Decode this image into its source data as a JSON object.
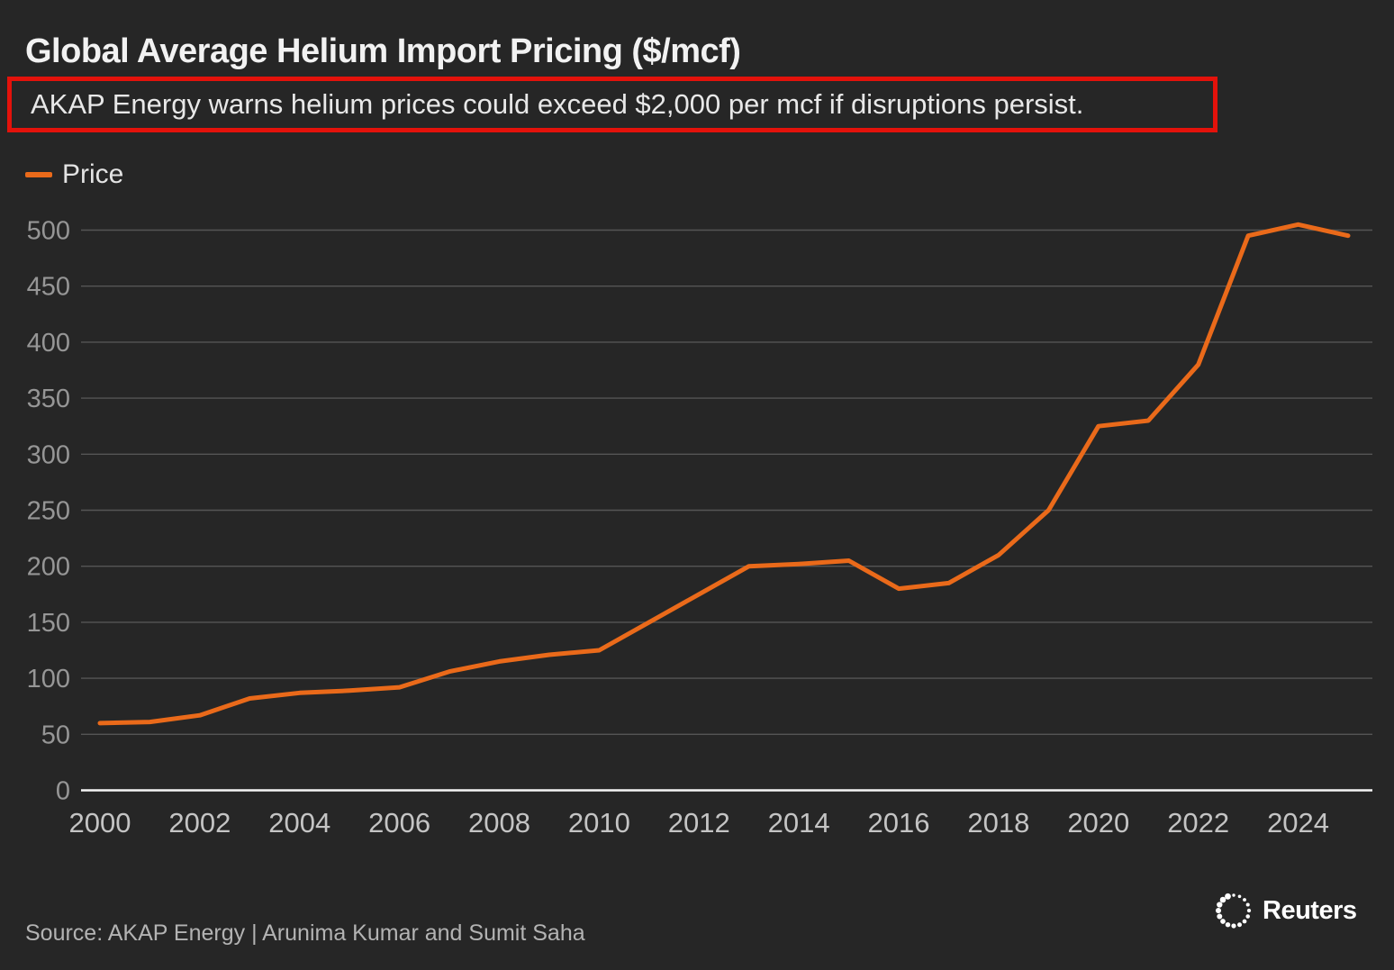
{
  "header": {
    "title": "Global Average Helium Import Pricing ($/mcf)",
    "subtitle": "AKAP Energy warns helium prices could exceed $2,000 per mcf if disruptions persist."
  },
  "legend": {
    "items": [
      {
        "label": "Price",
        "color": "#ea6a1a"
      }
    ]
  },
  "footer": {
    "source": "Source: AKAP Energy | Arunima Kumar and Sumit Saha",
    "logo_wordmark": "Reuters",
    "logo_icon": "reuters-dotted-circle"
  },
  "colors": {
    "background": "#262626",
    "title_text": "#f2f2f2",
    "subtitle_text": "#e8e8e8",
    "highlight_border": "#e3120b",
    "accent_orange": "#ea6a1a",
    "gridline": "#555555",
    "axis_line": "#f5f5f5",
    "y_tick_text": "#969696",
    "x_tick_text": "#c4c4c4",
    "source_text": "#b3b3b3"
  },
  "chart_data": {
    "type": "line",
    "title": "Global Average Helium Import Pricing ($/mcf)",
    "subtitle_annotation": "AKAP Energy warns helium prices could exceed $2,000 per mcf if disruptions persist.",
    "xlabel": "",
    "ylabel": "",
    "grid": "horizontal",
    "legend_position": "top-left",
    "xlim": [
      1999.6,
      2025.5
    ],
    "ylim": [
      0,
      520
    ],
    "x_ticks": [
      2000,
      2002,
      2004,
      2006,
      2008,
      2010,
      2012,
      2014,
      2016,
      2018,
      2020,
      2022,
      2024
    ],
    "y_ticks": [
      0,
      50,
      100,
      150,
      200,
      250,
      300,
      350,
      400,
      450,
      500
    ],
    "series": [
      {
        "name": "Price",
        "color": "#ea6a1a",
        "x": [
          2000,
          2001,
          2002,
          2003,
          2004,
          2005,
          2006,
          2007,
          2008,
          2009,
          2010,
          2011,
          2012,
          2013,
          2014,
          2015,
          2016,
          2017,
          2018,
          2019,
          2020,
          2021,
          2022,
          2023,
          2024,
          2025
        ],
        "values": [
          60,
          61,
          67,
          82,
          87,
          89,
          92,
          106,
          115,
          121,
          125,
          150,
          175,
          200,
          202,
          205,
          180,
          185,
          210,
          250,
          325,
          330,
          380,
          495,
          505,
          495
        ]
      }
    ]
  }
}
